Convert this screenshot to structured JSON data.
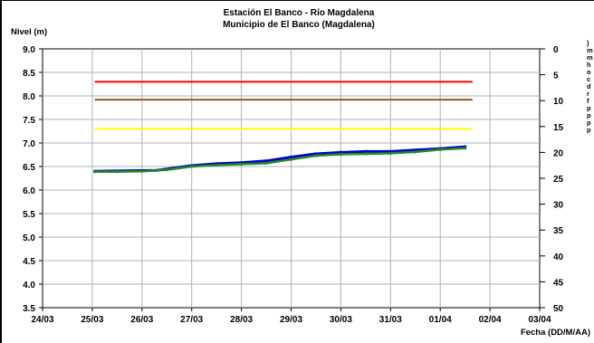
{
  "chart_data": {
    "type": "line",
    "title": "Estación El Banco - Río Magdalena",
    "subtitle": "Municipio de El Banco (Magdalena)",
    "ylabel": "Nivel (m)",
    "xlabel": "Fecha (DD/M/AA)",
    "y2label": ")\nm\nm\nh\no\nc\nd\nr\nf\np\np\np\np",
    "ylim": [
      3.5,
      9.0
    ],
    "y_ticks": [
      "9.0",
      "8.5",
      "8.0",
      "7.5",
      "7.0",
      "6.5",
      "6.0",
      "5.5",
      "5.0",
      "4.5",
      "4.0",
      "3.5"
    ],
    "y2lim": [
      0,
      50
    ],
    "y2_ticks": [
      "0",
      "5",
      "10",
      "15",
      "20",
      "25",
      "30",
      "35",
      "40",
      "45",
      "50"
    ],
    "x_ticks": [
      "24/03",
      "25/03",
      "26/03",
      "27/03",
      "28/03",
      "29/03",
      "30/03",
      "31/03",
      "01/04",
      "02/04",
      "03/04"
    ],
    "grid": true,
    "thresholds": [
      {
        "level": 8.3,
        "color": "#ff0000"
      },
      {
        "level": 7.92,
        "color": "#a0522d"
      },
      {
        "level": 7.3,
        "color": "#ffff00"
      }
    ],
    "series": [
      {
        "color": "#0000cc",
        "points": [
          [
            1.05,
            6.4
          ],
          [
            2.3,
            6.42
          ],
          [
            3.0,
            6.52
          ],
          [
            3.5,
            6.56
          ],
          [
            4.0,
            6.58
          ],
          [
            4.5,
            6.62
          ],
          [
            5.0,
            6.7
          ],
          [
            5.5,
            6.77
          ],
          [
            6.0,
            6.8
          ],
          [
            6.5,
            6.82
          ],
          [
            7.0,
            6.82
          ],
          [
            7.5,
            6.85
          ],
          [
            8.0,
            6.88
          ],
          [
            8.5,
            6.92
          ]
        ]
      },
      {
        "color": "#228b22",
        "points": [
          [
            1.05,
            6.39
          ],
          [
            1.5,
            6.39
          ],
          [
            2.0,
            6.4
          ],
          [
            2.5,
            6.43
          ],
          [
            3.0,
            6.5
          ],
          [
            3.5,
            6.53
          ],
          [
            4.0,
            6.55
          ],
          [
            4.5,
            6.57
          ],
          [
            5.0,
            6.65
          ],
          [
            5.5,
            6.73
          ],
          [
            6.0,
            6.76
          ],
          [
            6.5,
            6.77
          ],
          [
            7.0,
            6.78
          ],
          [
            7.5,
            6.81
          ],
          [
            8.0,
            6.86
          ],
          [
            8.5,
            6.89
          ]
        ]
      }
    ]
  }
}
